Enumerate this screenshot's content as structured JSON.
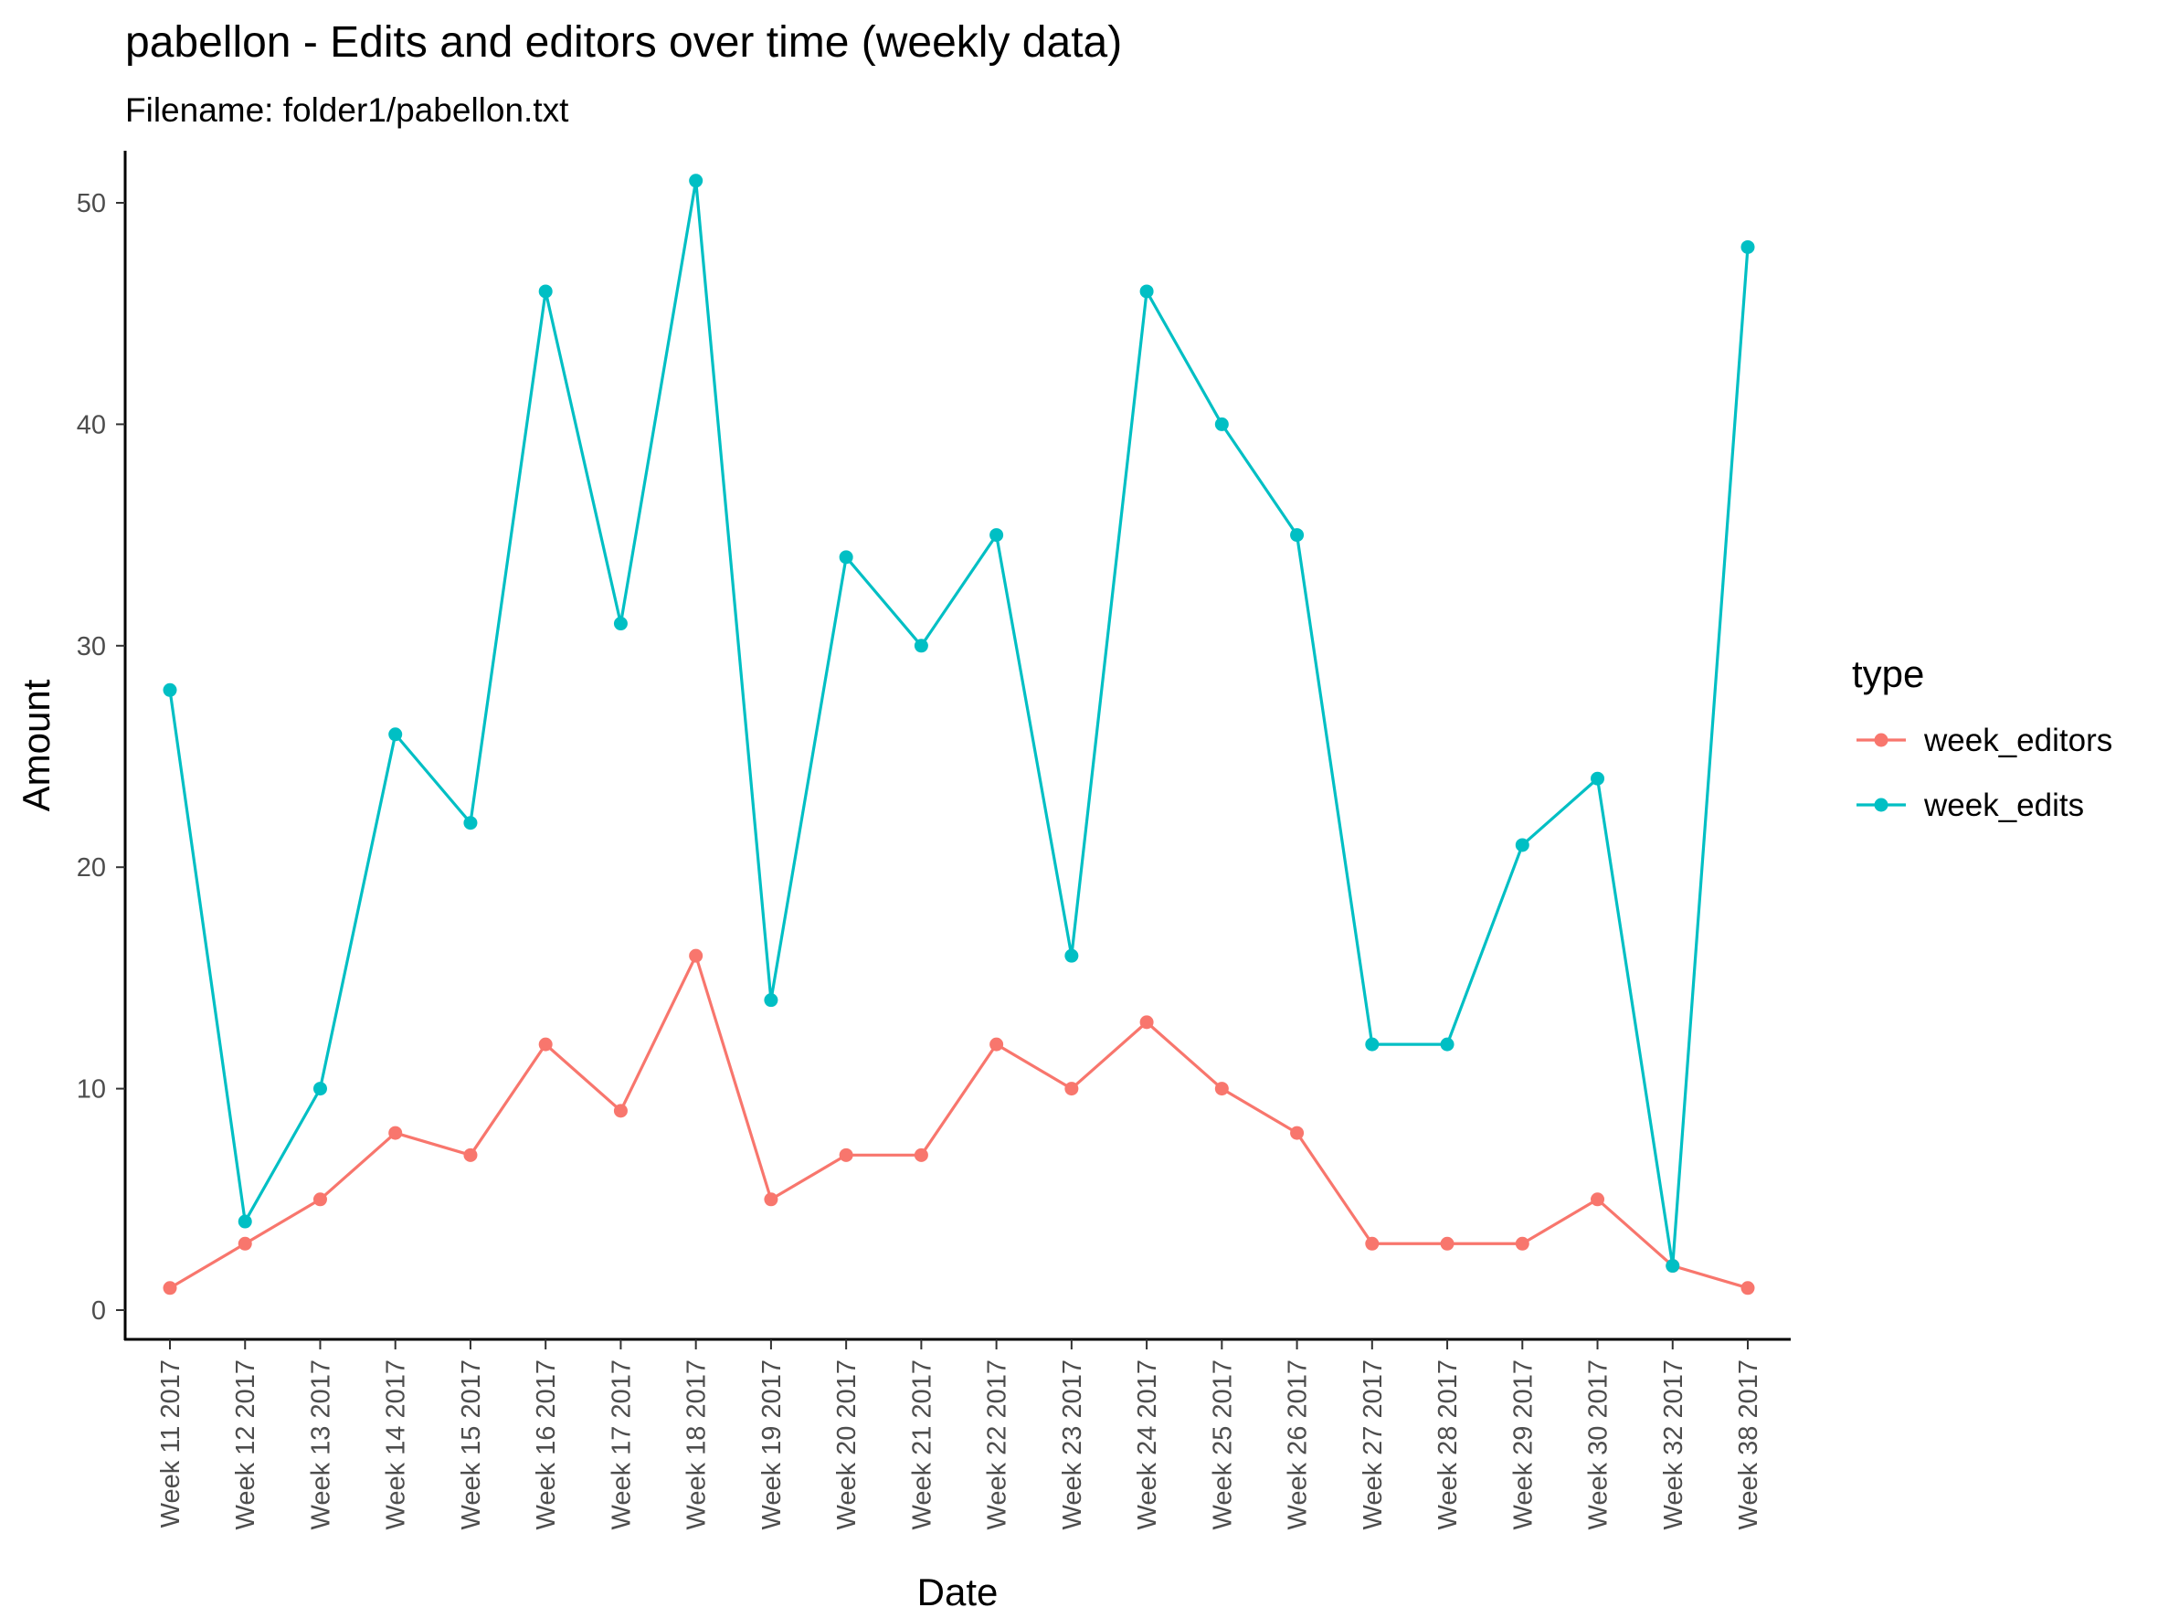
{
  "chart_data": {
    "type": "line",
    "title": "pabellon - Edits and editors over time (weekly data)",
    "subtitle": "Filename: folder1/pabellon.txt",
    "xlabel": "Date",
    "ylabel": "Amount",
    "ylim": [
      -1.4,
      53.5
    ],
    "yticks": [
      0,
      10,
      20,
      30,
      40,
      50
    ],
    "grid": false,
    "legend": {
      "title": "type",
      "placement": "right"
    },
    "categories": [
      "Week 11 2017",
      "Week 12 2017",
      "Week 13 2017",
      "Week 14 2017",
      "Week 15 2017",
      "Week 16 2017",
      "Week 17 2017",
      "Week 18 2017",
      "Week 19 2017",
      "Week 20 2017",
      "Week 21 2017",
      "Week 22 2017",
      "Week 23 2017",
      "Week 24 2017",
      "Week 25 2017",
      "Week 26 2017",
      "Week 27 2017",
      "Week 28 2017",
      "Week 29 2017",
      "Week 30 2017",
      "Week 32 2017",
      "Week 38 2017"
    ],
    "series": [
      {
        "name": "week_editors",
        "color": "#F8766D",
        "values": [
          1,
          3,
          5,
          8,
          7,
          12,
          9,
          16,
          5,
          7,
          7,
          12,
          10,
          13,
          10,
          8,
          3,
          3,
          3,
          5,
          2,
          1
        ]
      },
      {
        "name": "week_edits",
        "color": "#00BFC4",
        "values": [
          28,
          4,
          10,
          26,
          22,
          46,
          31,
          51,
          14,
          34,
          30,
          35,
          16,
          46,
          40,
          35,
          12,
          12,
          21,
          24,
          2,
          48
        ]
      }
    ]
  }
}
